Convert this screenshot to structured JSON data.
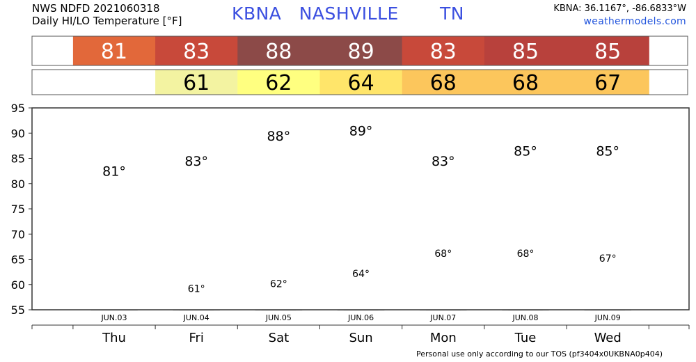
{
  "header": {
    "line1": "NWS NDFD 2021060318",
    "line2": "Daily HI/LO Temperature [°F]",
    "station_title": "KBNA   NASHVILLE       TN",
    "coords": "KBNA: 36.1167°, -86.6833°W",
    "site": "weathermodels.com"
  },
  "footer": {
    "note": "Personal use only according to our TOS (pf3404x0UKBNA0p404)"
  },
  "colors": {
    "high_bar": "#5599ee",
    "low_bar": "#3ec45c",
    "bar_outline": "#555555"
  },
  "chart_data": {
    "type": "bar",
    "categories": [
      "Thu",
      "Fri",
      "Sat",
      "Sun",
      "Mon",
      "Tue",
      "Wed"
    ],
    "dates": [
      "JUN.03",
      "JUN.04",
      "JUN.05",
      "JUN.06",
      "JUN.07",
      "JUN.08",
      "JUN.09"
    ],
    "series": [
      {
        "values": [
          81,
          83,
          88,
          89,
          83,
          85,
          85
        ]
      },
      {
        "values": [
          null,
          61,
          62,
          64,
          68,
          68,
          67
        ]
      }
    ],
    "high_labels": [
      "81°",
      "83°",
      "88°",
      "89°",
      "83°",
      "85°",
      "85°"
    ],
    "low_labels": [
      "",
      "61°",
      "62°",
      "64°",
      "68°",
      "68°",
      "67°"
    ],
    "high_strip": [
      "81",
      "83",
      "88",
      "89",
      "83",
      "85",
      "85"
    ],
    "low_strip": [
      "",
      "61",
      "62",
      "64",
      "68",
      "68",
      "67"
    ],
    "high_strip_colors": [
      "#e2683a",
      "#c8493a",
      "#8c4a48",
      "#8c4a48",
      "#c8493a",
      "#b8413c",
      "#b8413c"
    ],
    "low_strip_colors": [
      "",
      "#f3f3a1",
      "#ffff80",
      "#ffe56a",
      "#fcc65c",
      "#fcc65c",
      "#fcc65c"
    ],
    "ylim": [
      55,
      95
    ],
    "yticks": [
      "55",
      "60",
      "65",
      "70",
      "75",
      "80",
      "85",
      "90",
      "95"
    ],
    "grid": true
  }
}
